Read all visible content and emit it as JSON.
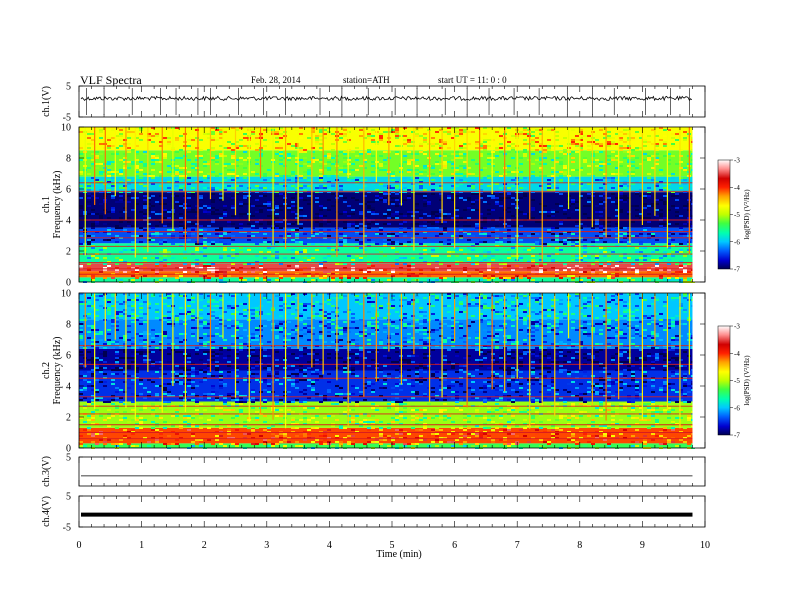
{
  "header": {
    "title": "VLF  Spectra",
    "date": "Feb. 28, 2014",
    "station": "station=ATH",
    "start": "start  UT  =   11: 0  : 0"
  },
  "chart_data": [
    {
      "type": "line",
      "id": "ch1",
      "ylabel": "ch.1(V)",
      "ylim": [
        -5,
        5
      ],
      "yticks": [
        "5",
        "-5"
      ],
      "baseline": 1,
      "spikes": [
        0.12,
        0.4,
        0.85,
        1.3,
        1.55,
        1.9,
        2.1,
        2.55,
        2.95,
        3.3,
        3.85,
        4.2,
        4.62,
        5.05,
        5.4,
        5.85,
        6.2,
        6.55,
        6.95,
        7.35,
        7.8,
        8.2,
        8.55,
        9.05,
        9.45,
        9.75
      ]
    },
    {
      "type": "heatmap",
      "id": "ch1-spectrogram",
      "ylabel": "ch.1",
      "ylabel2": "Frequency  (kHz)",
      "ylim": [
        0,
        10
      ],
      "yticks": [
        "0",
        "2",
        "4",
        "6",
        "8",
        "10"
      ],
      "xlim": [
        0,
        9.8
      ],
      "colorbar": {
        "label": "log(PSD) (V²/Hz)",
        "ticks": [
          "-3",
          "-4",
          "-5",
          "-6",
          "-7"
        ],
        "range": [
          -7,
          -3
        ]
      },
      "bands": [
        {
          "f0": 0,
          "f1": 0.3,
          "v": -5.6
        },
        {
          "f0": 0.3,
          "f1": 0.7,
          "v": -4.2
        },
        {
          "f0": 0.7,
          "f1": 1.2,
          "v": -3.5
        },
        {
          "f0": 1.2,
          "f1": 2.5,
          "v": -5.6
        },
        {
          "f0": 2.5,
          "f1": 3.5,
          "v": -6.4
        },
        {
          "f0": 3.5,
          "f1": 5.8,
          "v": -6.9
        },
        {
          "f0": 5.8,
          "f1": 6.8,
          "v": -5.9
        },
        {
          "f0": 6.8,
          "f1": 8.5,
          "v": -5.2
        },
        {
          "f0": 8.5,
          "f1": 10,
          "v": -4.7
        }
      ],
      "lines_khz": [
        0.5,
        0.85,
        1.25,
        1.8,
        2.3,
        2.85,
        3.25,
        4.0,
        5.85,
        6.4
      ],
      "sferics_min": [
        0.1,
        0.25,
        0.42,
        0.58,
        0.75,
        0.9,
        1.1,
        1.33,
        1.5,
        1.7,
        1.9,
        2.1,
        2.3,
        2.5,
        2.72,
        2.9,
        3.1,
        3.3,
        3.5,
        3.72,
        3.9,
        4.12,
        4.3,
        4.55,
        4.75,
        4.95,
        5.15,
        5.35,
        5.6,
        5.8,
        6.0,
        6.2,
        6.4,
        6.6,
        6.8,
        7.0,
        7.2,
        7.4,
        7.6,
        7.82,
        8.0,
        8.2,
        8.42,
        8.62,
        8.8,
        9.0,
        9.2,
        9.4,
        9.6,
        9.75
      ]
    },
    {
      "type": "heatmap",
      "id": "ch2-spectrogram",
      "ylabel": "ch.2",
      "ylabel2": "Frequency  (kHz)",
      "ylim": [
        0,
        10
      ],
      "yticks": [
        "0",
        "2",
        "4",
        "6",
        "8",
        "10"
      ],
      "xlim": [
        0,
        9.8
      ],
      "colorbar": {
        "label": "log(PSD) (V²/Hz)",
        "ticks": [
          "-3",
          "-4",
          "-5",
          "-6",
          "-7"
        ],
        "range": [
          -7,
          -3
        ]
      },
      "bands": [
        {
          "f0": 0,
          "f1": 0.3,
          "v": -5.4
        },
        {
          "f0": 0.3,
          "f1": 1.3,
          "v": -4.1
        },
        {
          "f0": 1.3,
          "f1": 3.0,
          "v": -5.1
        },
        {
          "f0": 3.0,
          "f1": 5.0,
          "v": -6.5
        },
        {
          "f0": 5.0,
          "f1": 6.4,
          "v": -6.8
        },
        {
          "f0": 6.4,
          "f1": 8.3,
          "v": -6.2
        },
        {
          "f0": 8.3,
          "f1": 10,
          "v": -6.0
        }
      ],
      "lines_khz": [
        0.6,
        1.0,
        1.5,
        2.2,
        2.7,
        3.3,
        4.5,
        5.4,
        6.6
      ],
      "sferics_min": [
        0.1,
        0.25,
        0.42,
        0.58,
        0.75,
        0.9,
        1.1,
        1.33,
        1.5,
        1.7,
        1.9,
        2.1,
        2.3,
        2.5,
        2.72,
        2.9,
        3.1,
        3.3,
        3.5,
        3.72,
        3.9,
        4.12,
        4.3,
        4.55,
        4.75,
        4.95,
        5.15,
        5.35,
        5.6,
        5.8,
        6.0,
        6.2,
        6.4,
        6.6,
        6.8,
        7.0,
        7.2,
        7.4,
        7.6,
        7.82,
        8.0,
        8.2,
        8.42,
        8.62,
        8.8,
        9.0,
        9.2,
        9.4,
        9.6,
        9.75
      ]
    },
    {
      "type": "line",
      "id": "ch3",
      "ylabel": "ch.3(V)",
      "ylim": [
        -5,
        5
      ],
      "yticks": [
        "5"
      ],
      "baseline": -1.5,
      "spikes": []
    },
    {
      "type": "line",
      "id": "ch4",
      "ylabel": "ch.4(V)",
      "ylim": [
        -5,
        5
      ],
      "yticks": [
        "5",
        "-5"
      ],
      "baseline": -1,
      "spikes": []
    }
  ],
  "xaxis": {
    "label": "Time  (min)",
    "ticks": [
      "0",
      "1",
      "2",
      "3",
      "4",
      "5",
      "6",
      "7",
      "8",
      "9",
      "10"
    ],
    "xlim": [
      0,
      10
    ],
    "data_end": 9.8
  },
  "colors": {
    "scale": [
      "#000050",
      "#0000d0",
      "#0060ff",
      "#00c8ff",
      "#00ffb0",
      "#40ff40",
      "#c0ff00",
      "#ffff00",
      "#ffa000",
      "#ff2000",
      "#d00000",
      "#ff9090",
      "#ffffff"
    ]
  }
}
